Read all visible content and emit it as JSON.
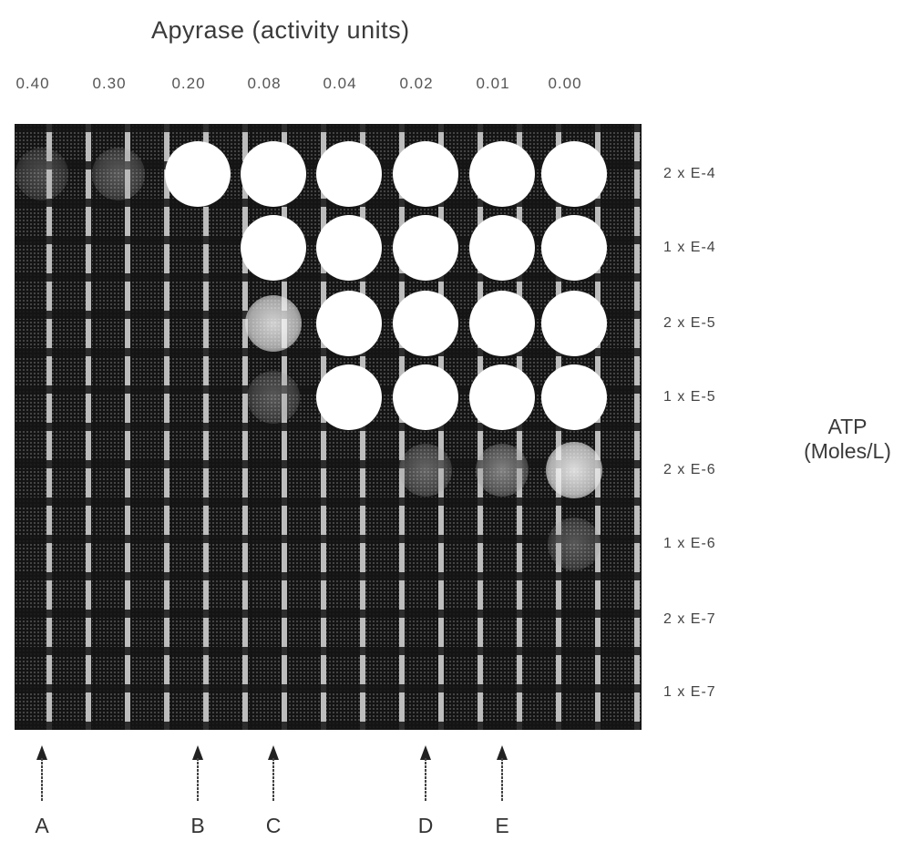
{
  "figure": {
    "title": "Apyrase  (activity units)",
    "columns": [
      "0.40",
      "0.30",
      "0.20",
      "0.08",
      "0.04",
      "0.02",
      "0.01",
      "0.00"
    ],
    "rows": [
      "2 x E-4",
      "1 x E-4",
      "2 x E-5",
      "1 x E-5",
      "2 x E-6",
      "1 x E-6",
      "2 x E-7",
      "1 x E-7"
    ],
    "row_axis_label": [
      "ATP",
      "(Moles/L)"
    ],
    "arrows": [
      {
        "letter": "A",
        "column": 0
      },
      {
        "letter": "B",
        "column": 2
      },
      {
        "letter": "C",
        "column": 3
      },
      {
        "letter": "D",
        "column": 5
      },
      {
        "letter": "E",
        "column": 6
      }
    ],
    "spot_intensity": [
      [
        0.2,
        0.25,
        0.95,
        1.0,
        1.0,
        1.0,
        1.0,
        1.0
      ],
      [
        0.0,
        0.0,
        0.0,
        1.0,
        1.0,
        1.0,
        1.0,
        1.0
      ],
      [
        0.0,
        0.0,
        0.0,
        0.8,
        1.0,
        1.0,
        1.0,
        1.0
      ],
      [
        0.0,
        0.0,
        0.0,
        0.25,
        0.97,
        1.0,
        1.0,
        1.0
      ],
      [
        0.0,
        0.0,
        0.0,
        0.0,
        0.0,
        0.3,
        0.4,
        0.85
      ],
      [
        0.0,
        0.0,
        0.0,
        0.0,
        0.0,
        0.0,
        0.0,
        0.25
      ],
      [
        0.0,
        0.0,
        0.0,
        0.0,
        0.0,
        0.0,
        0.0,
        0.0
      ],
      [
        0.0,
        0.0,
        0.0,
        0.0,
        0.0,
        0.0,
        0.0,
        0.0
      ]
    ],
    "colors": {
      "plate_background": "#141414",
      "spot": "#ffffff",
      "grid_highlight": "#bdbdbd"
    }
  }
}
